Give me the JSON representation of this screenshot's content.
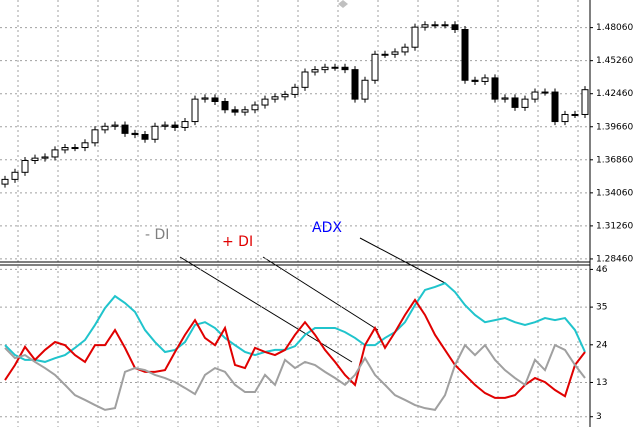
{
  "chart_data": [
    {
      "type": "candlestick",
      "open": [
        1.348,
        1.352,
        1.358,
        1.368,
        1.37,
        1.371,
        1.377,
        1.379,
        1.379,
        1.383,
        1.394,
        1.397,
        1.398,
        1.391,
        1.39,
        1.386,
        1.397,
        1.398,
        1.396,
        1.401,
        1.42,
        1.421,
        1.418,
        1.411,
        1.409,
        1.411,
        1.415,
        1.42,
        1.422,
        1.424,
        1.43,
        1.443,
        1.445,
        1.447,
        1.447,
        1.445,
        1.42,
        1.436,
        1.458,
        1.458,
        1.46,
        1.464,
        1.481,
        1.483,
        1.483,
        1.483,
        1.479,
        1.436,
        1.435,
        1.438,
        1.42,
        1.421,
        1.413,
        1.42,
        1.426,
        1.426,
        1.401,
        1.407,
        1.407
      ],
      "high": [
        1.355,
        1.361,
        1.371,
        1.373,
        1.374,
        1.38,
        1.382,
        1.382,
        1.386,
        1.397,
        1.4,
        1.401,
        1.401,
        1.394,
        1.393,
        1.4,
        1.401,
        1.401,
        1.404,
        1.423,
        1.424,
        1.424,
        1.421,
        1.414,
        1.414,
        1.418,
        1.423,
        1.425,
        1.427,
        1.433,
        1.446,
        1.448,
        1.45,
        1.45,
        1.45,
        1.448,
        1.439,
        1.461,
        1.461,
        1.463,
        1.467,
        1.484,
        1.486,
        1.486,
        1.486,
        1.486,
        1.482,
        1.439,
        1.441,
        1.441,
        1.424,
        1.424,
        1.423,
        1.429,
        1.429,
        1.429,
        1.41,
        1.41,
        1.431
      ],
      "low": [
        1.345,
        1.349,
        1.355,
        1.365,
        1.367,
        1.368,
        1.374,
        1.376,
        1.376,
        1.38,
        1.391,
        1.394,
        1.388,
        1.387,
        1.383,
        1.383,
        1.394,
        1.393,
        1.393,
        1.398,
        1.417,
        1.415,
        1.408,
        1.406,
        1.406,
        1.408,
        1.412,
        1.417,
        1.419,
        1.421,
        1.427,
        1.44,
        1.442,
        1.444,
        1.442,
        1.417,
        1.417,
        1.433,
        1.455,
        1.455,
        1.457,
        1.461,
        1.478,
        1.48,
        1.48,
        1.476,
        1.433,
        1.432,
        1.432,
        1.417,
        1.417,
        1.41,
        1.41,
        1.417,
        1.423,
        1.398,
        1.398,
        1.404,
        1.404
      ],
      "close": [
        1.352,
        1.358,
        1.368,
        1.37,
        1.371,
        1.377,
        1.379,
        1.379,
        1.383,
        1.394,
        1.397,
        1.398,
        1.391,
        1.39,
        1.386,
        1.397,
        1.398,
        1.396,
        1.401,
        1.42,
        1.421,
        1.418,
        1.411,
        1.409,
        1.411,
        1.415,
        1.42,
        1.422,
        1.424,
        1.43,
        1.443,
        1.445,
        1.447,
        1.447,
        1.445,
        1.42,
        1.436,
        1.458,
        1.458,
        1.46,
        1.464,
        1.481,
        1.483,
        1.483,
        1.483,
        1.479,
        1.436,
        1.435,
        1.438,
        1.42,
        1.421,
        1.413,
        1.42,
        1.426,
        1.426,
        1.401,
        1.407,
        1.407,
        1.428
      ],
      "ylim": [
        1.282,
        1.504
      ],
      "yticks": [
        {
          "value": 1.4806,
          "label": "1.48060"
        },
        {
          "value": 1.4526,
          "label": "1.45260"
        },
        {
          "value": 1.4246,
          "label": "1.42460"
        },
        {
          "value": 1.3966,
          "label": "1.39660"
        },
        {
          "value": 1.3686,
          "label": "1.36860"
        },
        {
          "value": 1.3406,
          "label": "1.34060"
        },
        {
          "value": 1.3126,
          "label": "1.31260"
        },
        {
          "value": 1.2846,
          "label": "1.28460"
        }
      ],
      "grid": true
    },
    {
      "type": "line",
      "series": [
        {
          "name": "ADX",
          "color": "#20c4cc",
          "values": [
            23.9,
            21.0,
            19.6,
            19.6,
            19.0,
            20.1,
            21.0,
            23.1,
            25.4,
            29.8,
            34.7,
            38.2,
            36.2,
            33.6,
            28.3,
            24.8,
            21.9,
            22.5,
            24.8,
            29.8,
            30.6,
            28.9,
            26.0,
            23.9,
            21.9,
            21.0,
            21.9,
            22.5,
            22.5,
            23.6,
            26.9,
            28.9,
            28.9,
            28.9,
            27.7,
            26.0,
            23.9,
            23.9,
            26.0,
            27.7,
            30.6,
            35.6,
            40.0,
            40.9,
            42.0,
            39.4,
            35.6,
            32.7,
            30.6,
            31.2,
            31.8,
            30.6,
            29.8,
            30.6,
            31.8,
            31.2,
            31.8,
            28.3,
            21.9
          ]
        },
        {
          "name": "+ DI",
          "color": "#e00000",
          "values": [
            13.7,
            18.1,
            23.4,
            19.6,
            22.5,
            24.8,
            23.9,
            21.0,
            19.0,
            23.9,
            23.9,
            28.3,
            23.1,
            17.2,
            16.1,
            16.1,
            16.6,
            21.9,
            26.9,
            31.2,
            26.0,
            23.9,
            28.9,
            18.1,
            17.2,
            23.1,
            21.9,
            21.0,
            22.5,
            26.9,
            30.6,
            26.9,
            22.5,
            19.0,
            15.2,
            12.3,
            23.9,
            28.9,
            23.1,
            27.7,
            32.7,
            37.1,
            32.7,
            26.9,
            22.5,
            18.1,
            15.2,
            12.3,
            9.9,
            8.5,
            8.5,
            9.3,
            12.3,
            14.3,
            13.1,
            10.8,
            9.0,
            18.1,
            21.9
          ]
        },
        {
          "name": "- DI",
          "color": "#a0a0a0",
          "values": [
            23.1,
            20.1,
            21.0,
            19.0,
            17.2,
            15.2,
            12.3,
            9.3,
            7.9,
            6.4,
            5.0,
            5.5,
            16.1,
            17.2,
            16.6,
            15.2,
            14.3,
            13.1,
            11.4,
            9.6,
            15.2,
            17.2,
            16.1,
            12.3,
            10.2,
            10.2,
            15.2,
            12.3,
            19.6,
            17.2,
            19.0,
            18.1,
            16.1,
            14.3,
            12.3,
            15.2,
            20.1,
            15.2,
            12.3,
            9.3,
            7.9,
            6.4,
            5.5,
            5.0,
            9.3,
            18.1,
            23.9,
            21.0,
            23.9,
            19.6,
            16.6,
            14.3,
            12.3,
            19.6,
            16.6,
            23.9,
            22.5,
            18.1,
            14.3
          ]
        }
      ],
      "ylim": [
        0,
        47
      ],
      "yticks": [
        46,
        35,
        24,
        13,
        3
      ],
      "grid": true
    }
  ]
}
